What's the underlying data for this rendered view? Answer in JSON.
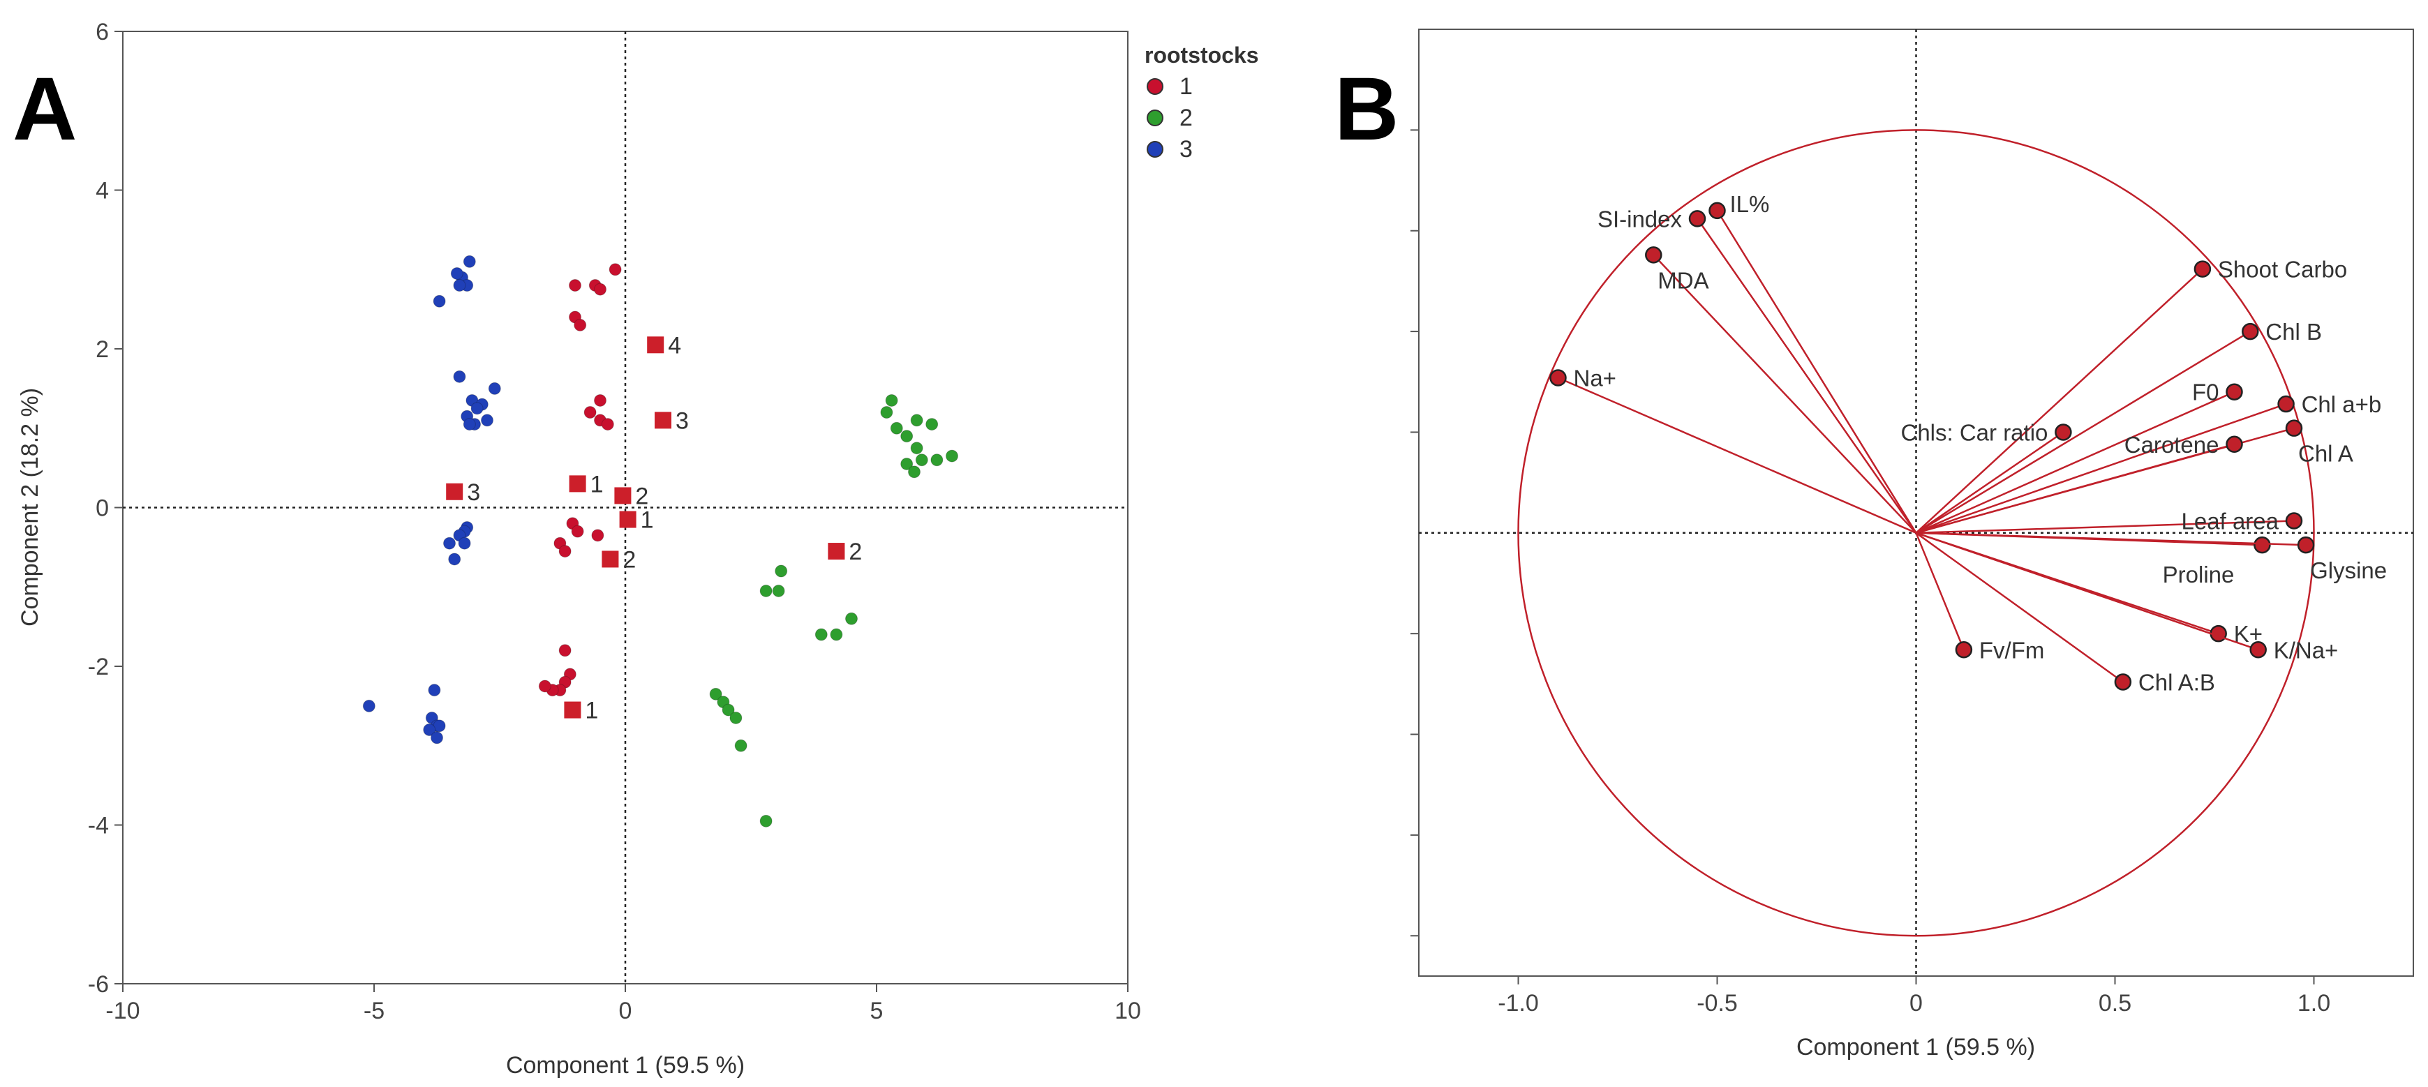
{
  "figure": {
    "panel_a_letter": "A",
    "panel_b_letter": "B"
  },
  "colors": {
    "group_1": "#c8102e",
    "group_2": "#2e9e2e",
    "group_3": "#2040b8",
    "square": "#cc1f2a",
    "arrow": "#c0202a",
    "circle": "#c0202a"
  },
  "chart_data": [
    {
      "type": "scatter",
      "title": "",
      "xlabel": "Component 1  (59.5 %)",
      "ylabel": "Component 2  (18.2 %)",
      "xlim": [
        -10,
        10
      ],
      "ylim": [
        -6,
        6
      ],
      "xticks": [
        "-10",
        "-5",
        "0",
        "5",
        "10"
      ],
      "yticks": [
        "-6",
        "-4",
        "-2",
        "0",
        "2",
        "4",
        "6"
      ],
      "xtick_values": [
        -10,
        -5,
        0,
        5,
        10
      ],
      "ytick_values": [
        -6,
        -4,
        -2,
        0,
        2,
        4,
        6
      ],
      "reference_lines": {
        "x": 0,
        "y": 0,
        "style": "dotted"
      },
      "legend": {
        "title": "rootstocks",
        "entries": [
          "1",
          "2",
          "3"
        ],
        "position": "right"
      },
      "series": [
        {
          "name": "1",
          "color_key": "group_1",
          "points": [
            [
              -1.0,
              2.8
            ],
            [
              -0.6,
              2.8
            ],
            [
              -0.5,
              2.75
            ],
            [
              -0.2,
              3.0
            ],
            [
              -1.0,
              2.4
            ],
            [
              -0.9,
              2.3
            ],
            [
              -0.7,
              1.2
            ],
            [
              -0.5,
              1.1
            ],
            [
              -0.5,
              1.35
            ],
            [
              -0.35,
              1.05
            ],
            [
              -1.3,
              -0.45
            ],
            [
              -1.2,
              -0.55
            ],
            [
              -1.05,
              -0.2
            ],
            [
              -0.95,
              -0.3
            ],
            [
              -0.55,
              -0.35
            ],
            [
              -1.2,
              -1.8
            ],
            [
              -1.1,
              -2.1
            ],
            [
              -1.2,
              -2.2
            ],
            [
              -1.3,
              -2.3
            ],
            [
              -1.45,
              -2.3
            ],
            [
              -1.6,
              -2.25
            ]
          ]
        },
        {
          "name": "2",
          "color_key": "group_2",
          "points": [
            [
              5.3,
              1.35
            ],
            [
              5.2,
              1.2
            ],
            [
              5.4,
              1.0
            ],
            [
              5.6,
              0.9
            ],
            [
              5.8,
              1.1
            ],
            [
              6.1,
              1.05
            ],
            [
              5.8,
              0.75
            ],
            [
              5.9,
              0.6
            ],
            [
              6.2,
              0.6
            ],
            [
              6.5,
              0.65
            ],
            [
              5.6,
              0.55
            ],
            [
              5.75,
              0.45
            ],
            [
              3.1,
              -0.8
            ],
            [
              2.8,
              -1.05
            ],
            [
              3.05,
              -1.05
            ],
            [
              4.5,
              -1.4
            ],
            [
              4.2,
              -1.6
            ],
            [
              3.9,
              -1.6
            ],
            [
              1.8,
              -2.35
            ],
            [
              1.95,
              -2.45
            ],
            [
              2.05,
              -2.55
            ],
            [
              2.2,
              -2.65
            ],
            [
              2.3,
              -3.0
            ],
            [
              2.8,
              -3.95
            ]
          ]
        },
        {
          "name": "3",
          "color_key": "group_3",
          "points": [
            [
              -3.1,
              3.1
            ],
            [
              -3.25,
              2.9
            ],
            [
              -3.35,
              2.95
            ],
            [
              -3.15,
              2.8
            ],
            [
              -3.3,
              2.8
            ],
            [
              -3.7,
              2.6
            ],
            [
              -3.3,
              1.65
            ],
            [
              -2.6,
              1.5
            ],
            [
              -3.05,
              1.35
            ],
            [
              -2.85,
              1.3
            ],
            [
              -2.95,
              1.25
            ],
            [
              -3.15,
              1.15
            ],
            [
              -2.75,
              1.1
            ],
            [
              -3.0,
              1.05
            ],
            [
              -3.1,
              1.05
            ],
            [
              -3.15,
              -0.25
            ],
            [
              -3.2,
              -0.3
            ],
            [
              -3.3,
              -0.35
            ],
            [
              -3.5,
              -0.45
            ],
            [
              -3.2,
              -0.45
            ],
            [
              -3.4,
              -0.65
            ],
            [
              -3.8,
              -2.3
            ],
            [
              -3.85,
              -2.65
            ],
            [
              -3.75,
              -2.75
            ],
            [
              -3.7,
              -2.75
            ],
            [
              -3.9,
              -2.8
            ],
            [
              -3.75,
              -2.9
            ],
            [
              -5.1,
              -2.5
            ]
          ]
        }
      ],
      "square_markers": [
        {
          "x": 0.6,
          "y": 2.05,
          "label": "4"
        },
        {
          "x": 0.75,
          "y": 1.1,
          "label": "3"
        },
        {
          "x": -3.4,
          "y": 0.2,
          "label": "3"
        },
        {
          "x": -0.95,
          "y": 0.3,
          "label": "1"
        },
        {
          "x": -0.05,
          "y": 0.15,
          "label": "2"
        },
        {
          "x": 0.05,
          "y": -0.15,
          "label": "1"
        },
        {
          "x": -0.3,
          "y": -0.65,
          "label": "2"
        },
        {
          "x": 4.2,
          "y": -0.55,
          "label": "2"
        },
        {
          "x": -1.05,
          "y": -2.55,
          "label": "1"
        }
      ]
    },
    {
      "type": "scatter",
      "subtype": "loading-plot",
      "title": "",
      "xlabel": "Component 1  (59.5 %)",
      "ylabel": "",
      "xlim": [
        -1.25,
        1.25
      ],
      "ylim": [
        -1.1,
        1.25
      ],
      "xticks": [
        "-1.0",
        "-0.5",
        "0",
        "0.5",
        "1.0"
      ],
      "xtick_values": [
        -1.0,
        -0.5,
        0,
        0.5,
        1.0
      ],
      "ytick_values": [
        -1.0,
        -0.75,
        -0.5,
        -0.25,
        0.25,
        0.5,
        0.75,
        1.0
      ],
      "reference_circle_radius": 1.0,
      "reference_lines": {
        "x": 0,
        "y": 0,
        "style": "dotted"
      },
      "loadings": [
        {
          "label": "IL%",
          "x": -0.5,
          "y": 0.8,
          "anchor": "right-up"
        },
        {
          "label": "SI-index",
          "x": -0.55,
          "y": 0.78,
          "anchor": "left"
        },
        {
          "label": "MDA",
          "x": -0.66,
          "y": 0.69,
          "anchor": "below-right"
        },
        {
          "label": "Na+",
          "x": -0.9,
          "y": 0.385,
          "anchor": "right"
        },
        {
          "label": "Shoot Carbo",
          "x": 0.72,
          "y": 0.655,
          "anchor": "right"
        },
        {
          "label": "Chl B",
          "x": 0.84,
          "y": 0.5,
          "anchor": "right"
        },
        {
          "label": "F0",
          "x": 0.8,
          "y": 0.35,
          "anchor": "left"
        },
        {
          "label": "Chl a+b",
          "x": 0.93,
          "y": 0.32,
          "anchor": "right"
        },
        {
          "label": "Chl A",
          "x": 0.95,
          "y": 0.26,
          "anchor": "below-right"
        },
        {
          "label": "Chls: Car ratio",
          "x": 0.37,
          "y": 0.25,
          "anchor": "left"
        },
        {
          "label": "Carotene",
          "x": 0.8,
          "y": 0.22,
          "anchor": "left"
        },
        {
          "label": "Leaf area",
          "x": 0.95,
          "y": 0.03,
          "anchor": "left"
        },
        {
          "label": "Proline",
          "x": 0.87,
          "y": -0.03,
          "anchor": "below-left"
        },
        {
          "label": "Glysine",
          "x": 0.98,
          "y": -0.03,
          "anchor": "below-right"
        },
        {
          "label": "K+",
          "x": 0.76,
          "y": -0.25,
          "anchor": "right"
        },
        {
          "label": "K/Na+",
          "x": 0.86,
          "y": -0.29,
          "anchor": "right"
        },
        {
          "label": "Fv/Fm",
          "x": 0.12,
          "y": -0.29,
          "anchor": "right"
        },
        {
          "label": "Chl A:B",
          "x": 0.52,
          "y": -0.37,
          "anchor": "right"
        }
      ]
    }
  ]
}
